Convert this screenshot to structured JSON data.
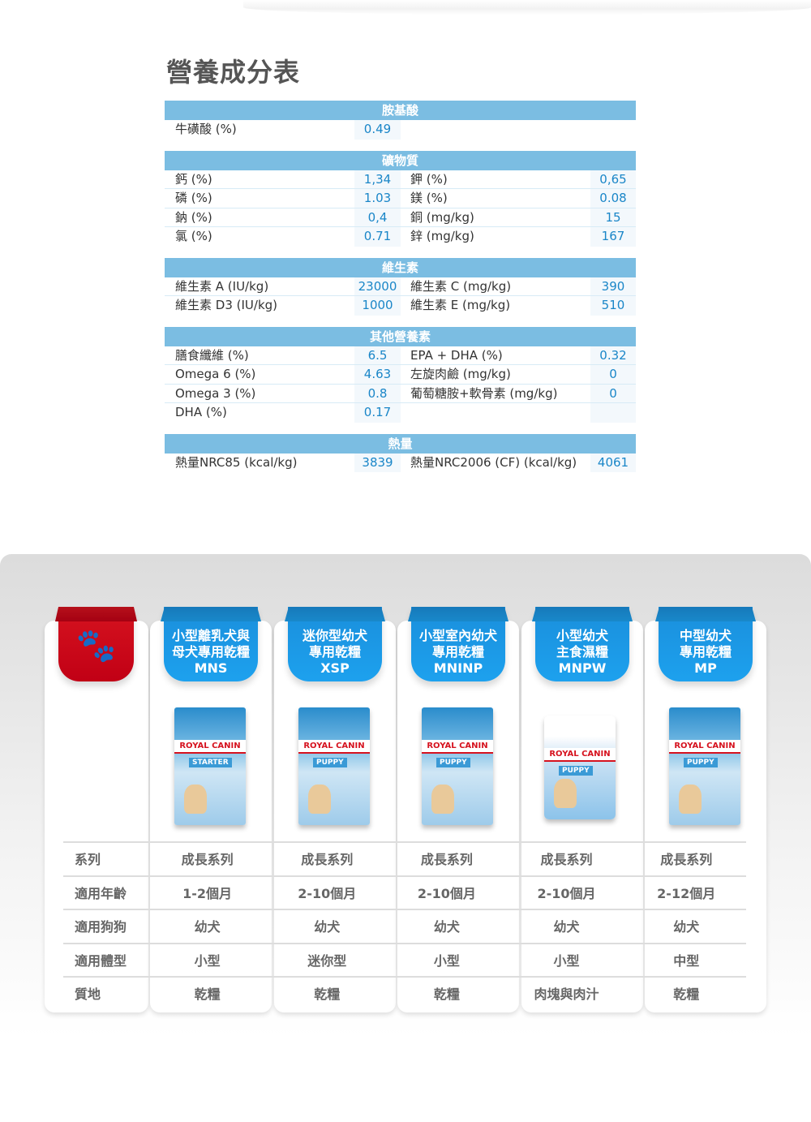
{
  "title": "營養成分表",
  "nutrition": [
    {
      "header": "胺基酸",
      "rows": [
        [
          "牛磺酸 (%)",
          "0.49",
          "",
          ""
        ]
      ]
    },
    {
      "header": "礦物質",
      "rows": [
        [
          "鈣 (%)",
          "1,34",
          "鉀 (%)",
          "0,65"
        ],
        [
          "磷 (%)",
          "1.03",
          "鎂 (%)",
          "0.08"
        ],
        [
          "鈉 (%)",
          "0,4",
          "銅 (mg/kg)",
          "15"
        ],
        [
          "氯 (%)",
          "0.71",
          "鋅 (mg/kg)",
          "167"
        ]
      ]
    },
    {
      "header": "維生素",
      "rows": [
        [
          "維生素 A (IU/kg)",
          "23000",
          "維生素 C (mg/kg)",
          "390"
        ],
        [
          "維生素 D3 (IU/kg)",
          "1000",
          "維生素 E (mg/kg)",
          "510"
        ]
      ]
    },
    {
      "header": "其他營養素",
      "rows": [
        [
          "膳食纖維 (%)",
          "6.5",
          "EPA + DHA (%)",
          "0.32"
        ],
        [
          "Omega 6 (%)",
          "4.63",
          "左旋肉鹼 (mg/kg)",
          "0"
        ],
        [
          "Omega 3 (%)",
          "0.8",
          "葡萄糖胺+軟骨素 (mg/kg)",
          "0"
        ],
        [
          "DHA (%)",
          "0.17",
          "",
          ""
        ]
      ]
    },
    {
      "header": "熱量",
      "rows": [
        [
          "熱量NRC85 (kcal/kg)",
          "3839",
          "熱量NRC2006 (CF) (kcal/kg)",
          "4061"
        ]
      ]
    }
  ],
  "brand": "ROYAL CANIN",
  "products": [
    {
      "line1": "小型離乳犬與",
      "line2": "母犬專用乾糧",
      "code": "MNS",
      "bag": "STARTER"
    },
    {
      "line1": "迷你型幼犬",
      "line2": "專用乾糧",
      "code": "XSP",
      "bag": "PUPPY"
    },
    {
      "line1": "小型室內幼犬",
      "line2": "專用乾糧",
      "code": "MNINP",
      "bag": "PUPPY"
    },
    {
      "line1": "小型幼犬",
      "line2": "主食濕糧",
      "code": "MNPW",
      "bag": "PUPPY"
    },
    {
      "line1": "中型幼犬",
      "line2": "專用乾糧",
      "code": "MP",
      "bag": "PUPPY"
    }
  ],
  "compare": [
    {
      "label": "系列",
      "values": [
        "成長系列",
        "成長系列",
        "成長系列",
        "成長系列",
        "成長系列"
      ]
    },
    {
      "label": "適用年齡",
      "values": [
        "1-2個月",
        "2-10個月",
        "2-10個月",
        "2-10個月",
        "2-12個月"
      ]
    },
    {
      "label": "適用狗狗",
      "values": [
        "幼犬",
        "幼犬",
        "幼犬",
        "幼犬",
        "幼犬"
      ]
    },
    {
      "label": "適用體型",
      "values": [
        "小型",
        "迷你型",
        "小型",
        "小型",
        "中型"
      ]
    },
    {
      "label": "質地",
      "values": [
        "乾糧",
        "乾糧",
        "乾糧",
        "肉塊與肉汁",
        "乾糧"
      ]
    }
  ],
  "colors": {
    "header": "#7bbde2",
    "value": "#1a86c8",
    "ribbon": "#1a9be6",
    "brand_red": "#d6131f"
  }
}
